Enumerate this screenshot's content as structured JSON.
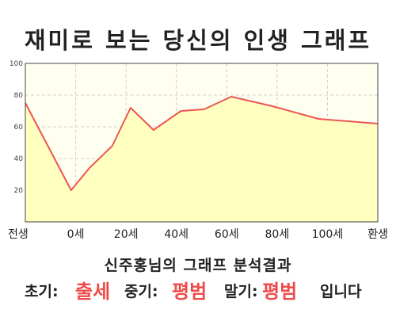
{
  "chart_data": {
    "type": "area",
    "title": "재미로 보는 당신의 인생 그래프",
    "categories": [
      "전생",
      "0세",
      "20세",
      "40세",
      "60세",
      "80세",
      "100세",
      "환생"
    ],
    "x": [
      0,
      10,
      14,
      19,
      23,
      28,
      34,
      39,
      45,
      54,
      64,
      77
    ],
    "x_domain": [
      0,
      77
    ],
    "y": [
      75,
      20,
      34,
      48,
      72,
      58,
      70,
      71,
      79,
      73,
      65,
      62
    ],
    "ylim": [
      0,
      100
    ],
    "yticks": [
      20,
      40,
      60,
      80,
      100
    ],
    "grid": true,
    "line_color": "#ee5555",
    "fill_color": "#ffffc0",
    "plot_background": "#fffff0"
  },
  "summary": "신주홍님의 그래프 분석결과",
  "stages": {
    "early_label": "초기:",
    "early_value": "출세",
    "middle_label": "중기:",
    "middle_value": "평범",
    "late_label": "말기:",
    "late_value": "평범",
    "ending": "입니다"
  }
}
